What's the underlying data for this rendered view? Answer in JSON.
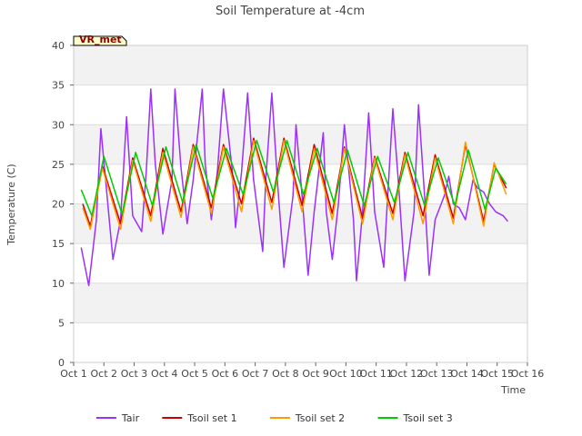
{
  "chart_data": {
    "type": "line",
    "title": "Soil Temperature at -4cm",
    "xlabel": "Time",
    "ylabel": "Temperature (C)",
    "badge": "VR_met",
    "xlim": [
      1,
      16
    ],
    "ylim": [
      0,
      40
    ],
    "x_ticks": [
      1,
      2,
      3,
      4,
      5,
      6,
      7,
      8,
      9,
      10,
      11,
      12,
      13,
      14,
      15,
      16
    ],
    "x_tick_labels": [
      "Oct 1",
      "Oct 2",
      "Oct 3",
      "Oct 4",
      "Oct 5",
      "Oct 6",
      "Oct 7",
      "Oct 8",
      "Oct 9",
      "Oct 10",
      "Oct 11",
      "Oct 12",
      "Oct 13",
      "Oct 14",
      "Oct 15",
      "Oct 16"
    ],
    "y_ticks": [
      0,
      5,
      10,
      15,
      20,
      25,
      30,
      35,
      40
    ],
    "y_tick_labels": [
      "0",
      "5",
      "10",
      "15",
      "20",
      "25",
      "30",
      "35",
      "40"
    ],
    "legend_position": "bottom-center",
    "grid": true,
    "series": [
      {
        "name": "Tair",
        "color": "#9b30ff",
        "x": [
          1.25,
          1.5,
          1.75,
          1.9,
          2.3,
          2.55,
          2.75,
          2.95,
          3.25,
          3.4,
          3.55,
          3.7,
          3.95,
          4.25,
          4.35,
          4.55,
          4.75,
          4.95,
          5.25,
          5.35,
          5.55,
          5.75,
          5.95,
          6.25,
          6.35,
          6.55,
          6.75,
          6.95,
          7.25,
          7.35,
          7.55,
          7.75,
          7.95,
          8.25,
          8.35,
          8.55,
          8.75,
          8.95,
          9.25,
          9.35,
          9.55,
          9.75,
          9.95,
          10.25,
          10.35,
          10.55,
          10.75,
          10.95,
          11.25,
          11.35,
          11.55,
          11.75,
          11.95,
          12.25,
          12.4,
          12.6,
          12.75,
          12.95,
          13.25,
          13.4,
          13.55,
          13.75,
          13.95,
          14.2,
          14.35,
          14.55,
          14.75,
          14.95,
          15.2,
          15.35
        ],
        "y": [
          14.5,
          9.7,
          18.0,
          29.5,
          13.0,
          18.0,
          31.0,
          18.5,
          16.5,
          24.0,
          34.5,
          25.0,
          16.2,
          23.0,
          34.5,
          24.5,
          17.5,
          23.0,
          34.5,
          25.0,
          18.0,
          24.0,
          34.5,
          24.0,
          17.0,
          24.0,
          34.0,
          23.0,
          14.0,
          23.0,
          34.0,
          22.0,
          12.0,
          21.0,
          30.0,
          21.0,
          11.0,
          19.0,
          29.0,
          19.0,
          13.0,
          20.0,
          30.0,
          18.0,
          10.3,
          19.0,
          31.5,
          19.0,
          12.0,
          19.0,
          32.0,
          22.0,
          10.3,
          19.0,
          32.5,
          21.0,
          11.0,
          18.0,
          21.0,
          23.5,
          20.0,
          19.5,
          18.0,
          23.0,
          22.0,
          21.5,
          20.0,
          19.0,
          18.5,
          17.8
        ]
      },
      {
        "name": "Tsoil set 1",
        "color": "#cc0000",
        "x": [
          1.3,
          1.55,
          1.95,
          2.55,
          2.95,
          3.55,
          3.95,
          4.55,
          4.95,
          5.55,
          5.95,
          6.55,
          6.95,
          7.55,
          7.95,
          8.55,
          8.95,
          9.55,
          9.95,
          10.55,
          10.95,
          11.55,
          11.95,
          12.55,
          12.95,
          13.55,
          13.95,
          14.55,
          14.9,
          15.3
        ],
        "y": [
          20.0,
          17.2,
          24.8,
          17.5,
          25.8,
          18.5,
          27.0,
          19.0,
          27.5,
          19.5,
          27.5,
          20.0,
          28.3,
          20.2,
          28.3,
          19.8,
          27.5,
          18.8,
          27.2,
          18.2,
          26.0,
          18.8,
          26.5,
          18.5,
          26.2,
          18.2,
          27.5,
          17.8,
          25.0,
          22.0
        ]
      },
      {
        "name": "Tsoil set 2",
        "color": "#ff9900",
        "x": [
          1.3,
          1.55,
          1.95,
          2.55,
          2.95,
          3.55,
          3.95,
          4.55,
          4.95,
          5.55,
          5.95,
          6.55,
          6.95,
          7.55,
          7.95,
          8.55,
          8.95,
          9.55,
          9.95,
          10.55,
          10.95,
          11.55,
          11.95,
          12.55,
          12.95,
          13.55,
          13.95,
          14.55,
          14.9,
          15.3
        ],
        "y": [
          19.5,
          16.8,
          24.5,
          16.8,
          25.5,
          17.8,
          26.5,
          18.3,
          27.2,
          18.8,
          27.2,
          19.0,
          28.0,
          19.3,
          28.0,
          19.0,
          27.0,
          18.0,
          27.0,
          17.5,
          25.8,
          18.0,
          26.2,
          17.5,
          25.8,
          17.5,
          27.8,
          17.2,
          25.2,
          21.2
        ]
      },
      {
        "name": "Tsoil set 3",
        "color": "#00cc00",
        "x": [
          1.25,
          1.6,
          2.0,
          2.6,
          3.05,
          3.6,
          4.05,
          4.6,
          5.05,
          5.6,
          6.05,
          6.6,
          7.05,
          7.6,
          8.05,
          8.6,
          9.05,
          9.6,
          10.05,
          10.6,
          11.05,
          11.6,
          12.05,
          12.6,
          13.05,
          13.6,
          14.05,
          14.6,
          14.95,
          15.3
        ],
        "y": [
          21.8,
          18.5,
          26.0,
          18.7,
          26.5,
          19.8,
          27.2,
          20.2,
          27.5,
          20.7,
          27.0,
          21.2,
          28.0,
          21.5,
          28.0,
          21.2,
          27.0,
          20.2,
          26.8,
          19.8,
          26.0,
          20.2,
          26.5,
          19.8,
          25.8,
          19.8,
          26.8,
          19.3,
          24.5,
          22.5
        ]
      }
    ]
  }
}
